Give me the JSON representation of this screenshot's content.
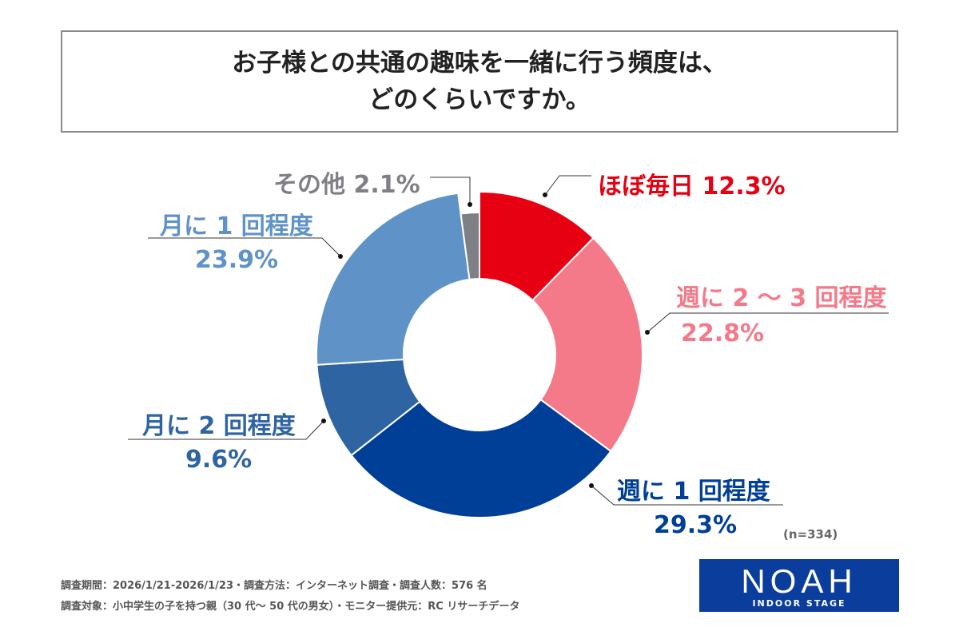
{
  "title": {
    "line1": "お子様との共通の趣味を一緒に行う頻度は、",
    "line2": "どのくらいですか。"
  },
  "chart_data": {
    "type": "donut",
    "title": "お子様との共通の趣味を一緒に行う頻度は、どのくらいですか。",
    "categories": [
      "ほぼ毎日",
      "週に 2 〜 3 回程度",
      "週に 1 回程度",
      "月に 2 回程度",
      "月に 1 回程度",
      "その他"
    ],
    "values": [
      12.3,
      22.8,
      29.3,
      9.6,
      23.9,
      2.1
    ],
    "value_labels": [
      "12.3%",
      "22.8%",
      "29.3%",
      "9.6%",
      "23.9%",
      "2.1%"
    ],
    "colors": [
      "#e60012",
      "#f47a8a",
      "#003f98",
      "#2f64a3",
      "#5f93c8",
      "#7f7f86"
    ],
    "start": "12 o'clock, clockwise"
  },
  "sample_size": "(n=334)",
  "footer": {
    "line1": "調査期間：2026/1/21-2026/1/23・調査方法：インターネット調査・調査人数：576 名",
    "line2": "調査対象：小中学生の子を持つ親（30 代〜 50 代の男女）・モニター提供元：RC リサーチデータ"
  },
  "logo": {
    "main": "NOAH",
    "sub": "INDOOR STAGE",
    "bg": "#0a3d9c",
    "accent": "#e60012"
  }
}
